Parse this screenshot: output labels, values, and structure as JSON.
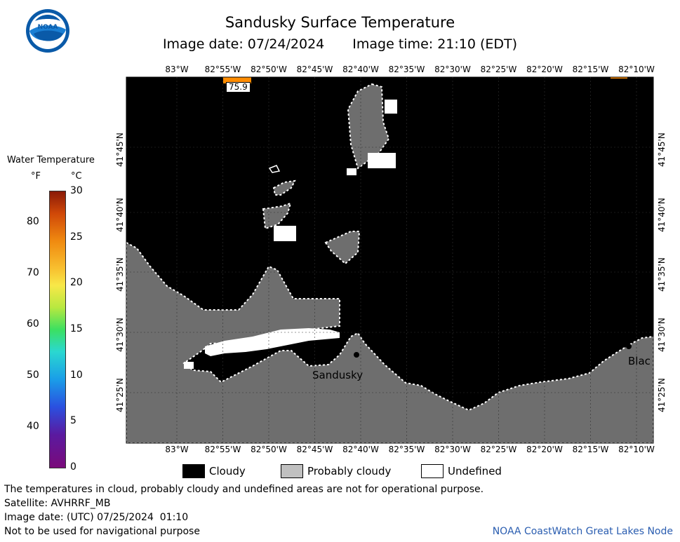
{
  "header": {
    "title": "Sandusky Surface Temperature",
    "image_date_text": "Image date: 07/24/2024",
    "image_time_text": "Image time: 21:10 (EDT)"
  },
  "logo": {
    "text": "NOAA"
  },
  "colorbar": {
    "title": "Water Temperature",
    "unit_f": "°F",
    "unit_c": "°C",
    "f_ticks": [
      "40",
      "50",
      "60",
      "70",
      "80"
    ],
    "c_ticks": [
      "0",
      "5",
      "10",
      "15",
      "20",
      "25",
      "30"
    ]
  },
  "map": {
    "lon_labels": [
      "83°W",
      "82°55'W",
      "82°50'W",
      "82°45'W",
      "82°40'W",
      "82°35'W",
      "82°30'W",
      "82°25'W",
      "82°20'W",
      "82°15'W",
      "82°10'W"
    ],
    "lat_labels": [
      "41°45'N",
      "41°40'N",
      "41°35'N",
      "41°30'N",
      "41°25'N"
    ],
    "sample_temp": "75.9",
    "place_sandusky": "Sandusky",
    "place_blac": "Blac"
  },
  "legend": {
    "cloudy": "Cloudy",
    "probably_cloudy": "Probably cloudy",
    "undefined": "Undefined",
    "colors": {
      "cloudy": "#000000",
      "probably_cloudy": "#c0c0c0",
      "undefined": "#ffffff",
      "land": "#6e6e6e",
      "warm_pixel": "#ff8c00"
    }
  },
  "footer": {
    "disclaimer": "The temperatures in cloud, probably cloudy and undefined areas are not for operational purpose.",
    "satellite": "Satellite: AVHRRF_MB",
    "utc_date": "Image date: (UTC) 07/25/2024  01:10",
    "nav_warning": "Not to be used for navigational purpose",
    "credit": "NOAA CoastWatch Great Lakes Node"
  }
}
